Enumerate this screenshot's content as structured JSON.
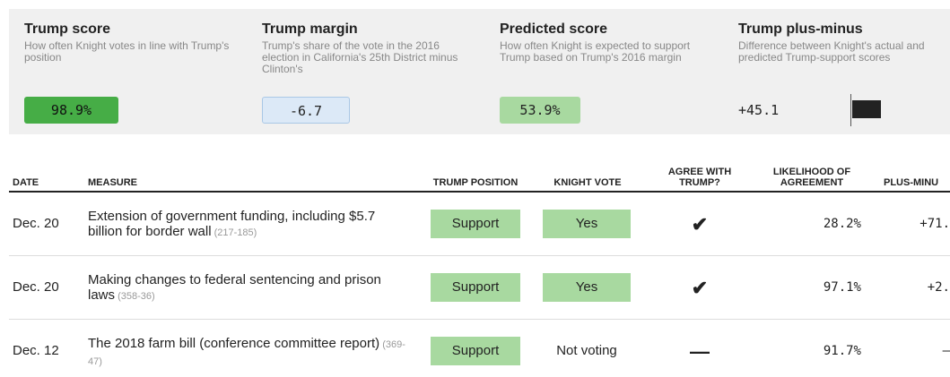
{
  "summary": [
    {
      "title": "Trump score",
      "description": "How often Knight votes in line with Trump's position",
      "value": "98.9%"
    },
    {
      "title": "Trump margin",
      "description": "Trump's share of the vote in the 2016 election in California's 25th District minus Clinton's",
      "value": "-6.7"
    },
    {
      "title": "Predicted score",
      "description": "How often Knight is expected to support Trump based on Trump's 2016 margin",
      "value": "53.9%"
    },
    {
      "title": "Trump plus-minus",
      "description": "Difference between Knight's actual and predicted Trump-support scores",
      "value": "+45.1"
    }
  ],
  "table": {
    "headers": [
      "DATE",
      "MEASURE",
      "TRUMP POSITION",
      "KNIGHT VOTE",
      "AGREE WITH TRUMP?",
      "LIKELIHOOD OF AGREEMENT",
      "PLUS-MINU"
    ],
    "rows": [
      {
        "date": "Dec. 20",
        "measure": "Extension of government funding, including $5.7 billion for border wall",
        "tally": "(217-185)",
        "position": "Support",
        "vote": "Yes",
        "agree": "✔",
        "likelihood": "28.2%",
        "plus_minus": "+71."
      },
      {
        "date": "Dec. 20",
        "measure": "Making changes to federal sentencing and prison laws",
        "tally": "(358-36)",
        "position": "Support",
        "vote": "Yes",
        "agree": "✔",
        "likelihood": "97.1%",
        "plus_minus": "+2."
      },
      {
        "date": "Dec. 12",
        "measure": "The 2018 farm bill (conference committee report)",
        "tally": "(369-47)",
        "position": "Support",
        "vote": "Not voting",
        "agree": "—",
        "likelihood": "91.7%",
        "plus_minus": "–"
      }
    ]
  }
}
